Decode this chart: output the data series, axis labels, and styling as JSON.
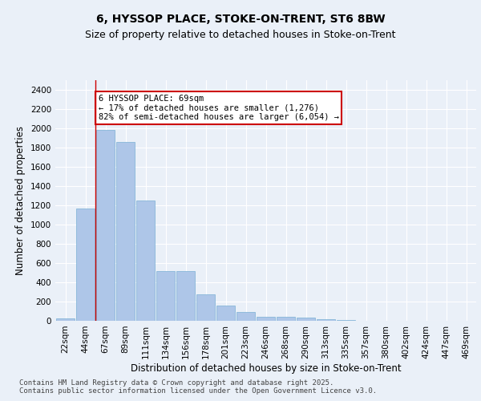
{
  "title": "6, HYSSOP PLACE, STOKE-ON-TRENT, ST6 8BW",
  "subtitle": "Size of property relative to detached houses in Stoke-on-Trent",
  "xlabel": "Distribution of detached houses by size in Stoke-on-Trent",
  "ylabel": "Number of detached properties",
  "categories": [
    "22sqm",
    "44sqm",
    "67sqm",
    "89sqm",
    "111sqm",
    "134sqm",
    "156sqm",
    "178sqm",
    "201sqm",
    "223sqm",
    "246sqm",
    "268sqm",
    "290sqm",
    "313sqm",
    "335sqm",
    "357sqm",
    "380sqm",
    "402sqm",
    "424sqm",
    "447sqm",
    "469sqm"
  ],
  "values": [
    25,
    1170,
    1980,
    1860,
    1250,
    520,
    520,
    275,
    160,
    90,
    45,
    45,
    35,
    15,
    8,
    3,
    2,
    1,
    1,
    0,
    0
  ],
  "bar_color": "#aec6e8",
  "bar_edge_color": "#7ab0d4",
  "annotation_text": "6 HYSSOP PLACE: 69sqm\n← 17% of detached houses are smaller (1,276)\n82% of semi-detached houses are larger (6,054) →",
  "annotation_box_color": "#ffffff",
  "annotation_box_edge_color": "#cc0000",
  "vline_color": "#cc0000",
  "ylim": [
    0,
    2500
  ],
  "yticks": [
    0,
    200,
    400,
    600,
    800,
    1000,
    1200,
    1400,
    1600,
    1800,
    2000,
    2200,
    2400
  ],
  "bg_color": "#eaf0f8",
  "plot_bg_color": "#eaf0f8",
  "footer_text": "Contains HM Land Registry data © Crown copyright and database right 2025.\nContains public sector information licensed under the Open Government Licence v3.0.",
  "title_fontsize": 10,
  "subtitle_fontsize": 9,
  "xlabel_fontsize": 8.5,
  "ylabel_fontsize": 8.5,
  "tick_fontsize": 7.5,
  "annotation_fontsize": 7.5,
  "footer_fontsize": 6.5
}
